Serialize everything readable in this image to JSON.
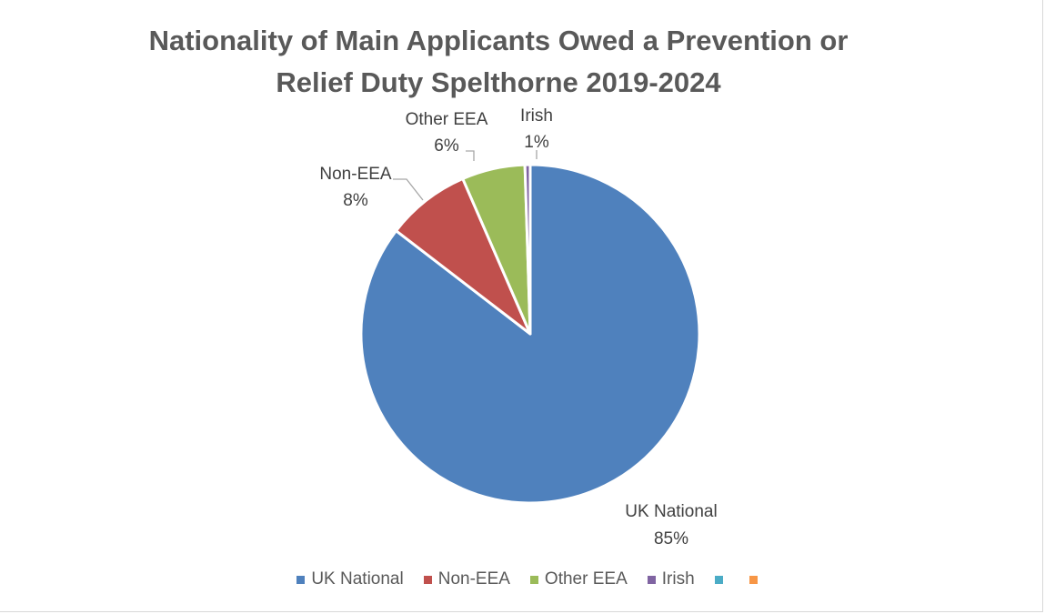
{
  "chart_data": {
    "type": "pie",
    "title_lines": [
      "Nationality of Main Applicants Owed a Prevention or",
      "Relief Duty Spelthorne 2019-2024"
    ],
    "slices": [
      {
        "label": "UK National",
        "value": 85,
        "display": "85%",
        "color": "#4f81bd"
      },
      {
        "label": "Non-EEA",
        "value": 8,
        "display": "8%",
        "color": "#c0504d"
      },
      {
        "label": "Other EEA",
        "value": 6,
        "display": "6%",
        "color": "#9bbb59"
      },
      {
        "label": "Irish",
        "value": 0.5,
        "display": "1%",
        "color": "#8064a2"
      }
    ],
    "legend": {
      "position": "bottom",
      "entries": [
        {
          "label": "UK National",
          "color": "#4f81bd"
        },
        {
          "label": "Non-EEA",
          "color": "#c0504d"
        },
        {
          "label": "Other EEA",
          "color": "#9bbb59"
        },
        {
          "label": "Irish",
          "color": "#8064a2"
        },
        {
          "label": "",
          "color": "#4bacc6"
        },
        {
          "label": "",
          "color": "#f79646"
        }
      ]
    }
  }
}
